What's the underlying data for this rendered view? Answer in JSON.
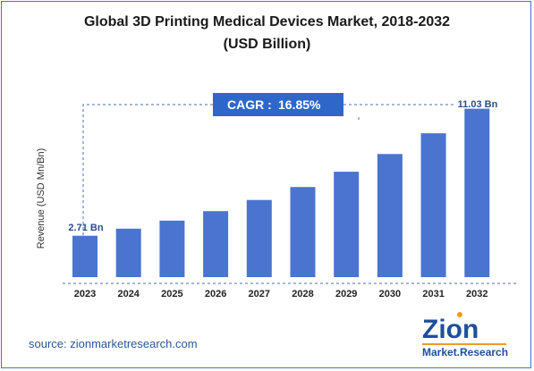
{
  "chart_data": {
    "type": "bar",
    "title": "Global 3D Printing Medical Devices Market, 2018-2032",
    "subtitle": "(USD Billion)",
    "ylabel": "Revenue (USD Mn/Bn)",
    "xlabel": "",
    "categories": [
      "2023",
      "2024",
      "2025",
      "2026",
      "2027",
      "2028",
      "2029",
      "2030",
      "2031",
      "2032"
    ],
    "values": [
      2.71,
      3.17,
      3.7,
      4.32,
      5.05,
      5.9,
      6.9,
      8.06,
      9.42,
      11.03
    ],
    "ylim": [
      0,
      12
    ],
    "grid": false,
    "legend": "none",
    "data_labels": {
      "first": "2.71 Bn",
      "last": "11.03 Bn"
    },
    "cagr": {
      "label": "CAGR :",
      "value": "16.85%"
    },
    "colors": {
      "bar": "#4a74cf",
      "cagr_box": "#2e67c9",
      "axis_line": "#4a6fb5",
      "label": "#2b4c8c"
    }
  },
  "source": "source: zionmarketresearch.com",
  "logo": {
    "line1": "Zion",
    "line2": "Market.Research",
    "colors": {
      "blue": "#1f4e9e",
      "orange": "#f29a1e"
    }
  }
}
